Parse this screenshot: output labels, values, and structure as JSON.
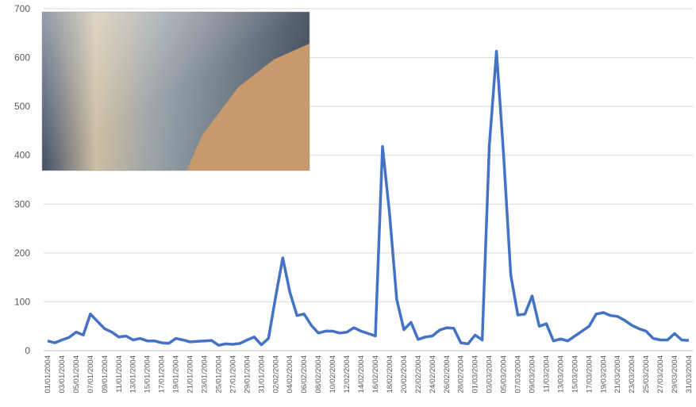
{
  "chart_data": {
    "type": "line",
    "categories": [
      "01/01/2004",
      null,
      "03/01/2004",
      null,
      "05/01/2004",
      null,
      "07/01/2004",
      null,
      "09/01/2004",
      null,
      "11/01/2004",
      null,
      "13/01/2004",
      null,
      "15/01/2004",
      null,
      "17/01/2004",
      null,
      "19/01/2004",
      null,
      "21/01/2004",
      null,
      "23/01/2004",
      null,
      "25/01/2004",
      null,
      "27/01/2004",
      null,
      "29/01/2004",
      null,
      "31/01/2004",
      null,
      "02/02/2004",
      null,
      "04/02/2004",
      null,
      "06/02/2004",
      null,
      "08/02/2004",
      null,
      "10/02/2004",
      null,
      "12/02/2004",
      null,
      "14/02/2004",
      null,
      "16/02/2004",
      null,
      "18/02/2004",
      null,
      "20/02/2004",
      null,
      "22/02/2004",
      null,
      "24/02/2004",
      null,
      "26/02/2004",
      null,
      "28/02/2004",
      null,
      "01/03/2004",
      null,
      "03/03/2004",
      null,
      "05/03/2004",
      null,
      "07/03/2004",
      null,
      "09/03/2004",
      null,
      "11/03/2004",
      null,
      "13/03/2004",
      null,
      "15/03/2004",
      null,
      "17/03/2004",
      null,
      "19/03/2004",
      null,
      "21/03/2004",
      null,
      "23/03/2004",
      null,
      "25/03/2004",
      null,
      "27/03/2004",
      null,
      "29/03/2004",
      null,
      "31/03/2004"
    ],
    "values": [
      20,
      16,
      22,
      27,
      38,
      32,
      75,
      60,
      45,
      38,
      28,
      30,
      22,
      25,
      20,
      20,
      16,
      15,
      25,
      22,
      18,
      19,
      20,
      21,
      11,
      14,
      13,
      15,
      22,
      28,
      12,
      25,
      110,
      190,
      120,
      72,
      75,
      52,
      36,
      40,
      40,
      36,
      38,
      47,
      40,
      35,
      30,
      418,
      280,
      105,
      43,
      58,
      23,
      28,
      30,
      42,
      47,
      46,
      16,
      14,
      32,
      22,
      420,
      613,
      400,
      155,
      73,
      75,
      112,
      50,
      55,
      20,
      24,
      20,
      30,
      40,
      50,
      75,
      78,
      72,
      70,
      62,
      52,
      45,
      40,
      25,
      22,
      22,
      35,
      22,
      21
    ],
    "color": "#4472c4",
    "ylim": [
      0,
      700
    ],
    "yticks": [
      0,
      100,
      200,
      300,
      400,
      500,
      600,
      700
    ],
    "grid": true
  }
}
